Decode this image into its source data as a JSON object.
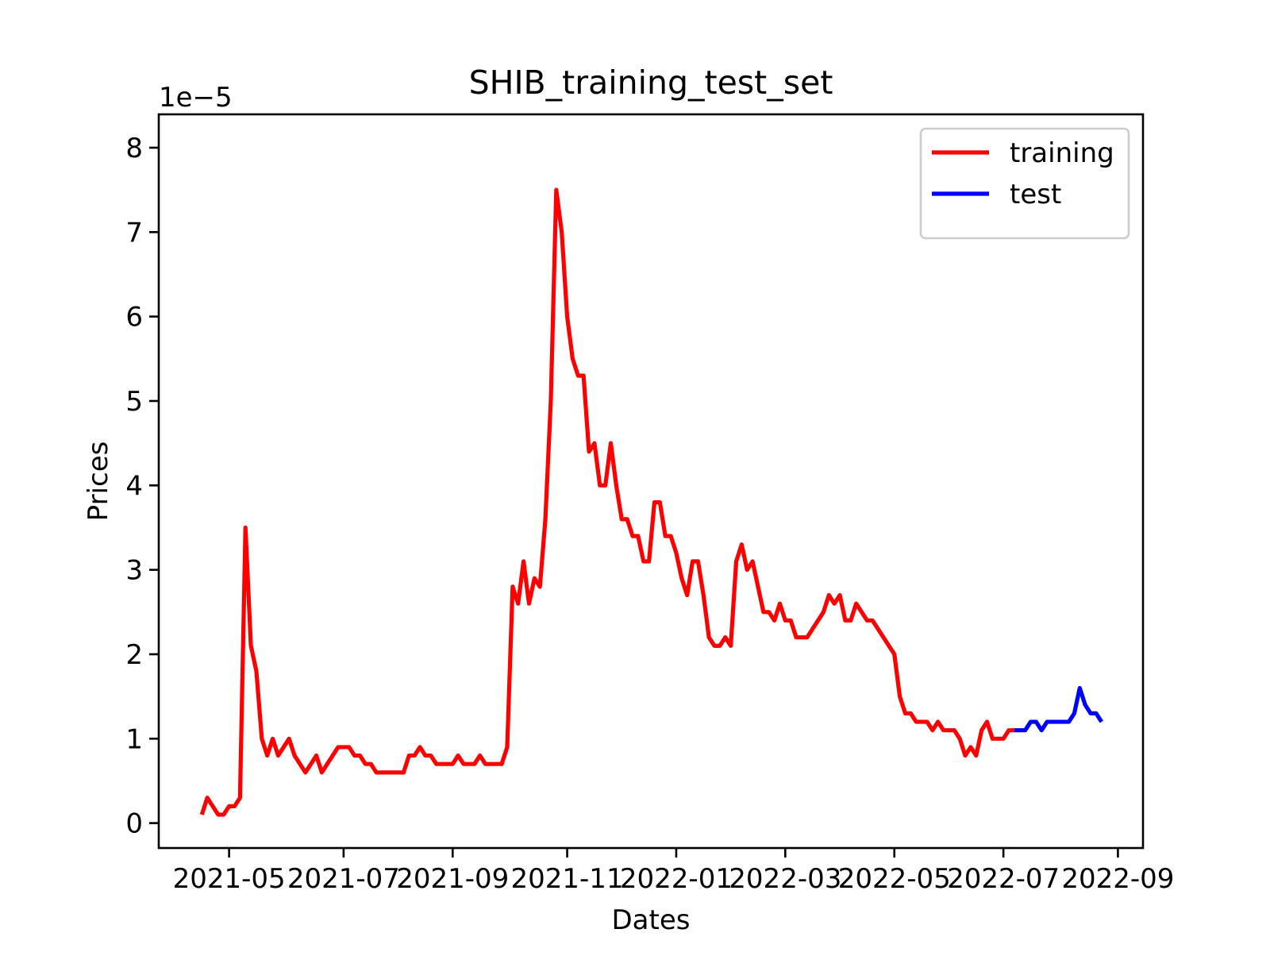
{
  "chart_data": {
    "type": "line",
    "title": "SHIB_training_test_set",
    "x_label": "Dates",
    "y_label": "Prices",
    "y_offset_text": "1e−5",
    "categories": [
      null,
      null,
      null,
      null,
      null,
      "2021-05",
      null,
      null,
      null,
      null,
      null,
      null,
      null,
      null,
      null,
      null,
      null,
      null,
      null,
      null,
      null,
      null,
      null,
      null,
      null,
      null,
      "2021-07",
      null,
      null,
      null,
      null,
      null,
      null,
      null,
      null,
      null,
      null,
      null,
      null,
      null,
      null,
      null,
      null,
      null,
      null,
      null,
      "2021-09",
      null,
      null,
      null,
      null,
      null,
      null,
      null,
      null,
      null,
      null,
      null,
      null,
      null,
      null,
      null,
      null,
      null,
      null,
      null,
      null,
      "2021-11",
      null,
      null,
      null,
      null,
      null,
      null,
      null,
      null,
      null,
      null,
      null,
      null,
      null,
      null,
      null,
      null,
      null,
      null,
      null,
      "2022-01",
      null,
      null,
      null,
      null,
      null,
      null,
      null,
      null,
      null,
      null,
      null,
      null,
      null,
      null,
      null,
      null,
      null,
      null,
      null,
      "2022-03",
      null,
      null,
      null,
      null,
      null,
      null,
      null,
      null,
      null,
      null,
      null,
      null,
      null,
      null,
      null,
      null,
      null,
      null,
      null,
      "2022-05",
      null,
      null,
      null,
      null,
      null,
      null,
      null,
      null,
      null,
      null,
      null,
      null,
      null,
      null,
      null,
      null,
      null,
      null,
      null,
      "2022-07",
      null,
      null,
      null,
      null,
      null,
      null,
      null,
      null,
      null,
      null,
      null,
      null,
      null,
      null,
      null,
      null,
      null,
      null,
      null,
      null,
      "2022-09"
    ],
    "series": [
      {
        "name": "training",
        "color": "#ff0000",
        "values": [
          0.1,
          0.3,
          0.2,
          0.1,
          0.1,
          0.2,
          0.2,
          0.3,
          3.5,
          2.1,
          1.8,
          1.0,
          0.8,
          1.0,
          0.8,
          0.9,
          1.0,
          0.8,
          0.7,
          0.6,
          0.7,
          0.8,
          0.6,
          0.7,
          0.8,
          0.9,
          0.9,
          0.9,
          0.8,
          0.8,
          0.7,
          0.7,
          0.6,
          0.6,
          0.6,
          0.6,
          0.6,
          0.6,
          0.8,
          0.8,
          0.9,
          0.8,
          0.8,
          0.7,
          0.7,
          0.7,
          0.7,
          0.8,
          0.7,
          0.7,
          0.7,
          0.8,
          0.7,
          0.7,
          0.7,
          0.7,
          0.9,
          2.8,
          2.6,
          3.1,
          2.6,
          2.9,
          2.8,
          3.6,
          5.0,
          7.5,
          7.0,
          6.0,
          5.5,
          5.3,
          5.3,
          4.4,
          4.5,
          4.0,
          4.0,
          4.5,
          4.0,
          3.6,
          3.6,
          3.4,
          3.4,
          3.1,
          3.1,
          3.8,
          3.8,
          3.4,
          3.4,
          3.2,
          2.9,
          2.7,
          3.1,
          3.1,
          2.7,
          2.2,
          2.1,
          2.1,
          2.2,
          2.1,
          3.1,
          3.3,
          3.0,
          3.1,
          2.8,
          2.5,
          2.5,
          2.4,
          2.6,
          2.4,
          2.4,
          2.2,
          2.2,
          2.2,
          2.3,
          2.4,
          2.5,
          2.7,
          2.6,
          2.7,
          2.4,
          2.4,
          2.6,
          2.5,
          2.4,
          2.4,
          2.3,
          2.2,
          2.1,
          2.0,
          1.5,
          1.3,
          1.3,
          1.2,
          1.2,
          1.2,
          1.1,
          1.2,
          1.1,
          1.1,
          1.1,
          1.0,
          0.8,
          0.9,
          0.8,
          1.1,
          1.2,
          1.0,
          1.0,
          1.0,
          1.1,
          1.1,
          null,
          null,
          null,
          null,
          null,
          null,
          null,
          null,
          null,
          null,
          null,
          null,
          null,
          null,
          null,
          null,
          null,
          null,
          null
        ]
      },
      {
        "name": "test",
        "color": "#0000ff",
        "values": [
          null,
          null,
          null,
          null,
          null,
          null,
          null,
          null,
          null,
          null,
          null,
          null,
          null,
          null,
          null,
          null,
          null,
          null,
          null,
          null,
          null,
          null,
          null,
          null,
          null,
          null,
          null,
          null,
          null,
          null,
          null,
          null,
          null,
          null,
          null,
          null,
          null,
          null,
          null,
          null,
          null,
          null,
          null,
          null,
          null,
          null,
          null,
          null,
          null,
          null,
          null,
          null,
          null,
          null,
          null,
          null,
          null,
          null,
          null,
          null,
          null,
          null,
          null,
          null,
          null,
          null,
          null,
          null,
          null,
          null,
          null,
          null,
          null,
          null,
          null,
          null,
          null,
          null,
          null,
          null,
          null,
          null,
          null,
          null,
          null,
          null,
          null,
          null,
          null,
          null,
          null,
          null,
          null,
          null,
          null,
          null,
          null,
          null,
          null,
          null,
          null,
          null,
          null,
          null,
          null,
          null,
          null,
          null,
          null,
          null,
          null,
          null,
          null,
          null,
          null,
          null,
          null,
          null,
          null,
          null,
          null,
          null,
          null,
          null,
          null,
          null,
          null,
          null,
          null,
          null,
          null,
          null,
          null,
          null,
          null,
          null,
          null,
          null,
          null,
          null,
          null,
          null,
          null,
          null,
          null,
          null,
          null,
          null,
          null,
          1.1,
          1.1,
          1.1,
          1.2,
          1.2,
          1.1,
          1.2,
          1.2,
          1.2,
          1.2,
          1.2,
          1.3,
          1.6,
          1.4,
          1.3,
          1.3,
          1.2,
          null,
          null,
          null
        ]
      }
    ],
    "ylim": [
      -0.295,
      8.395
    ],
    "yticks": [
      0,
      1,
      2,
      3,
      4,
      5,
      6,
      7,
      8
    ],
    "legend": "upper right"
  }
}
